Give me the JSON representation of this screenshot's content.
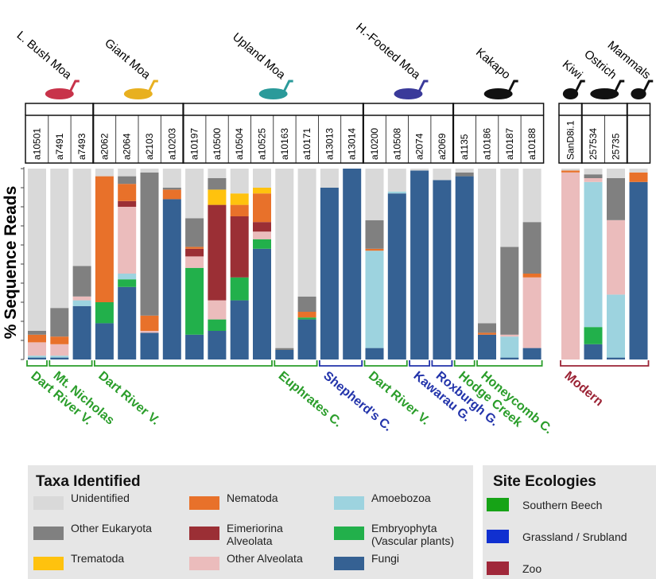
{
  "chart_data": {
    "type": "bar",
    "stacked": true,
    "ylabel": "% Sequence Reads",
    "categories": [
      "a10501",
      "a7491",
      "a7493",
      "a2062",
      "a2064",
      "a2103",
      "a10203",
      "a10197",
      "a10500",
      "a10504",
      "a10525",
      "a10163",
      "a10171",
      "a13013",
      "a13014",
      "a10200",
      "a10508",
      "a2074",
      "a2069",
      "a1135",
      "a10186",
      "a10187",
      "a10188",
      "SanD8i.1",
      "257534",
      "25735",
      null
    ],
    "ylim": [
      0,
      100
    ],
    "yticks": [
      0,
      10,
      20,
      30,
      40,
      50,
      60,
      70,
      80,
      90,
      100
    ],
    "series": [
      {
        "name": "Fungi",
        "color": "#356193",
        "values": [
          1,
          1,
          28,
          19,
          38,
          14,
          84,
          13,
          15,
          31,
          58,
          5,
          21,
          90,
          100,
          6,
          87,
          99,
          94,
          96,
          13,
          1,
          6,
          0,
          8,
          1,
          93
        ]
      },
      {
        "name": "Embryophyta (Vascular plants)",
        "color": "#22b04b",
        "values": [
          0,
          0,
          0,
          11,
          4,
          0,
          0,
          35,
          6,
          12,
          5,
          0,
          1,
          0,
          0,
          0,
          0,
          0,
          0,
          0,
          0,
          0,
          0,
          0,
          9,
          0,
          0
        ]
      },
      {
        "name": "Amoebozoa",
        "color": "#9dd3df",
        "values": [
          1,
          1,
          3,
          0,
          3,
          0,
          0,
          0,
          0,
          0,
          0,
          0,
          0,
          0,
          0,
          51,
          1,
          0,
          0,
          0,
          0,
          11,
          0,
          0,
          76,
          33,
          0
        ]
      },
      {
        "name": "Other Alveolata",
        "color": "#ebbcbc",
        "values": [
          7,
          6,
          2,
          0,
          35,
          1,
          0,
          6,
          10,
          0,
          4,
          0,
          0,
          0,
          0,
          0,
          0,
          0,
          0,
          0,
          0,
          1,
          37,
          98,
          2,
          39,
          0
        ]
      },
      {
        "name": "Eimeriorina Alveolata",
        "color": "#9b2f35",
        "values": [
          0,
          0,
          0,
          0,
          3,
          0,
          0,
          4,
          50,
          32,
          5,
          0,
          0,
          0,
          0,
          0,
          0,
          0,
          0,
          0,
          0,
          0,
          0,
          0,
          0,
          0,
          0
        ]
      },
      {
        "name": "Nematoda",
        "color": "#e8712a",
        "values": [
          4,
          4,
          0,
          66,
          9,
          8,
          5,
          1,
          0,
          6,
          15,
          0,
          3,
          0,
          0,
          1,
          0,
          0,
          0,
          0,
          1,
          0,
          2,
          1,
          0,
          0,
          5
        ]
      },
      {
        "name": "Trematoda",
        "color": "#ffc20e",
        "values": [
          0,
          0,
          0,
          0,
          0,
          0,
          0,
          0,
          8,
          6,
          3,
          0,
          0,
          0,
          0,
          0,
          0,
          0,
          0,
          0,
          0,
          0,
          0,
          0,
          0,
          0,
          0
        ]
      },
      {
        "name": "Other Eukaryota",
        "color": "#808080",
        "values": [
          2,
          15,
          16,
          0,
          4,
          75,
          1,
          15,
          6,
          0,
          0,
          1,
          8,
          0,
          0,
          15,
          0,
          0,
          0,
          2,
          5,
          46,
          27,
          0,
          2,
          22,
          0
        ]
      },
      {
        "name": "Unidentified",
        "color": "#d9d9d9",
        "values": [
          85,
          73,
          51,
          4,
          4,
          2,
          10,
          26,
          5,
          13,
          10,
          94,
          67,
          10,
          0,
          27,
          12,
          1,
          6,
          2,
          81,
          41,
          28,
          1,
          3,
          5,
          2
        ]
      }
    ],
    "legend_title": "Taxa Identified",
    "animals": [
      {
        "label": "L. Bush Moa",
        "bars": 3,
        "color": "#c8334a"
      },
      {
        "label": "Giant Moa",
        "bars": 4,
        "color": "#e8b020"
      },
      {
        "label": "Upland Moa",
        "bars": 8,
        "color": "#2a9a9a"
      },
      {
        "label": "H.-Footed Moa",
        "bars": 4,
        "color": "#3a3a9a"
      },
      {
        "label": "Kakapo",
        "bars": 4,
        "color": "#111111"
      },
      {
        "label": "Kiwi",
        "bars": 1,
        "color": "#111111"
      },
      {
        "label": "Ostrich",
        "bars": 2,
        "color": "#111111"
      },
      {
        "label": "Mammals",
        "bars": 1,
        "color": "#111111"
      }
    ],
    "sites": [
      {
        "label": "Dart River V.",
        "bars": 1,
        "color": "#2a9d2a"
      },
      {
        "label": "Mt. Nicholas",
        "bars": 2,
        "color": "#2a9d2a"
      },
      {
        "label": "Dart River V.",
        "bars": 8,
        "color": "#2a9d2a"
      },
      {
        "label": "Euphrates C.",
        "bars": 2,
        "color": "#2a9d2a"
      },
      {
        "label": "Shepherd's C.",
        "bars": 2,
        "color": "#2233aa"
      },
      {
        "label": "Dart River V.",
        "bars": 2,
        "color": "#2a9d2a"
      },
      {
        "label": "Kawarau G.",
        "bars": 1,
        "color": "#2233aa"
      },
      {
        "label": "Roxburgh G.",
        "bars": 1,
        "color": "#2233aa"
      },
      {
        "label": "Hodge Creek",
        "bars": 1,
        "color": "#2a9d2a"
      },
      {
        "label": "Honeycomb C.",
        "bars": 3,
        "color": "#2a9d2a"
      },
      {
        "label": "Modern",
        "bars": 4,
        "color": "#9b2335"
      }
    ],
    "ecologies": {
      "title": "Site Ecologies",
      "items": [
        {
          "label": "Southern Beech",
          "color": "#16a316"
        },
        {
          "label": "Grassland / Srubland",
          "color": "#1030d0"
        },
        {
          "label": "Zoo",
          "color": "#a0283a"
        }
      ]
    }
  }
}
